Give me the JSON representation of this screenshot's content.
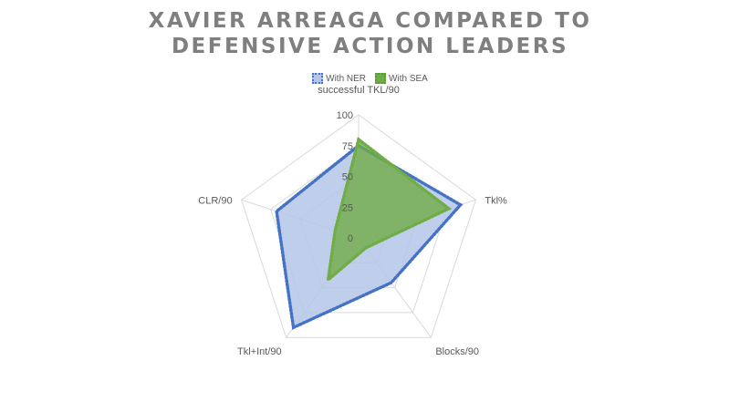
{
  "chart_data": {
    "type": "radar",
    "title_lines": [
      "XAVIER ARREAGA COMPARED TO",
      "DEFENSIVE ACTION LEADERS"
    ],
    "categories": [
      "successful TKL/90",
      "Tkl%",
      "Blocks/90",
      "Tkl+Int/90",
      "CLR/90"
    ],
    "radial_ticks": [
      0,
      25,
      50,
      75,
      100
    ],
    "rlim": [
      0,
      100
    ],
    "grid": true,
    "legend_position": "top",
    "series": [
      {
        "name": "With NER",
        "values": [
          75,
          87,
          45,
          90,
          70
        ],
        "color": "#4472c4",
        "fill": "#b4c6e7"
      },
      {
        "name": "With SEA",
        "values": [
          80,
          77,
          10,
          42,
          20
        ],
        "color": "#70ad47",
        "fill": "#70ad47"
      }
    ]
  }
}
